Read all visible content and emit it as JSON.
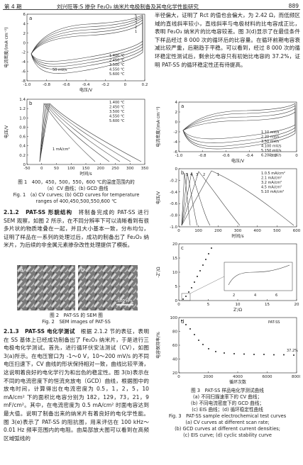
{
  "header": {
    "issue": "第 4 期",
    "running_title": "刘兴旺等:S 掺杂 Fe₂O₃ 纳米片电极制备及其电化学性能研究",
    "page": "889"
  },
  "figure1": {
    "a": {
      "label": "a",
      "ylabel": "电流密度/(mA·cm⁻²)",
      "xlabel": "电压/V",
      "yticks": [
        "6",
        "4",
        "2",
        "0",
        "-2",
        "-4",
        "-6",
        "-8"
      ],
      "xticks": [
        "-1.0",
        "-0.8",
        "-0.6",
        "-0.4",
        "-0.2",
        "0",
        "0.2"
      ],
      "legend": [
        "1.400 ℃",
        "2.450 ℃",
        "3.500 ℃",
        "4.550 ℃",
        "5.600 ℃"
      ],
      "notes": [
        "50 mV/s",
        "1",
        "2",
        "3",
        "4",
        "5"
      ]
    },
    "b": {
      "label": "b",
      "ylabel": "电压/V",
      "xlabel": "时间/s",
      "yticks": [
        "1.4",
        "1.2",
        "1.0",
        "0.8",
        "0.6",
        "0.4",
        "0.2",
        "0"
      ],
      "xticks": [
        "-50",
        "0",
        "50",
        "100",
        "150",
        "200",
        "250",
        "300",
        "350"
      ],
      "legend": [
        "1.400 ℃",
        "2.450 ℃",
        "3.500 ℃",
        "4.550 ℃",
        "5.600 ℃"
      ],
      "notes": [
        "1 mA/cm²"
      ]
    },
    "caption_cn": [
      "图 1　400，450，500，550，600 ℃的温度范围内的",
      "（a）CV 曲线；(b) GCD 曲线"
    ],
    "caption_en": [
      "Fig. 1　(a) CV curves; (b) GCD curves for temperature",
      "ranges of 400,450,500,550,600 ℃"
    ]
  },
  "section_2_1_2": {
    "heading": "2.1.2　PAT-SS 形貌结构",
    "text": "　将制备完成的 PAT-SS 进行 SEM 观察，如图 2 所示，在不同分辨率下可以清晰看到有很多片状的物质堆叠在一起，并且大小基本一致，分布均匀，证明了样品在一系列的处理过后，成功的制备出了 Fe₂O₃ 纳米片，为后续的非金属元素掺杂改性处理提供了模板。"
  },
  "figure2": {
    "panels": [
      "a",
      "b"
    ],
    "scale_bar": "500 nm",
    "caption_cn": "图 2　PAT-SS 的 SEM 图",
    "caption_en": "Fig. 2　SEM images of PAT-SS"
  },
  "section_2_1_3": {
    "heading": "2.1.3　PAT-SS 电化学测试",
    "text": "　根据 2.1.2 节的表征，表明在 SS 基体上已经成功制备出了 Fe₂O₃ 纳米片，于是进行三电极电化学测试。首先，进行循环伏安法测试（CV），如图 3(a)所示。在电压窗口为 -1～0 V，10～200 mV/s 的不同电压扫速下，CV 曲线的形状保持相对一致，曲线比较平滑，这说明着良好的电化学行为和出色的稳定性。图 3(b)表示在不同的电流密度下的恒流充放电（GCD）曲线，根据图中的放电时间，计算得出在电流密度为 0.5，1，2，5，10 mA/cm² 下的面积比电容分别为 182，129，73，21，9 mF/cm²。其中，在电流密度为 0.5 mA/cm² 时面电容达到最大值。说明了制备出来的纳米片有着良好的电化学性能。图 3(e)表示了 PAT-SS 的阻抗图，用来评估在 100 kHz～0.01 Hz 频率范围内的电阻。由局部放大图可以看到在高频区域弧线的"
  },
  "paragraph_right": "半径偏大，证明了 Rct 的值也会偏大，为 2.42 Ω，而低频区域的直线斜率较小，直线斜率与电极材料的比电容成正比，表明 Fe₂O₃ 纳米片的比电容较差。图 3(d)显示了在最佳条件下样品经过 8 000 次的循环后的比容量。在循环前期电容衰减比较严重，后期趋于平稳。可以看到，经过 8 000 次的循环稳定性测试后，剩余比电容只有初始比电容的 37.2%，证明 PAT-SS 的循环稳定性还有待提高。",
  "figure3": {
    "a": {
      "label": "a",
      "ylabel": "电流密度/(mA·cm⁻²)",
      "xlabel": "电压/V",
      "yticks": [
        "4",
        "2",
        "0",
        "-2",
        "-4",
        "-6"
      ],
      "xticks": [
        "-1.0",
        "-0.8",
        "-0.6",
        "-0.4",
        "-0.2",
        "0"
      ],
      "legend": [
        "1.10 mV/s",
        "2.20 mV/s",
        "3.50 mV/s",
        "4.100 mV/s",
        "5.150 mV/s",
        "6.200 mV/s"
      ],
      "notes": []
    },
    "b": {
      "label": "b",
      "ylabel": "电压/V",
      "xlabel": "时间/s",
      "yticks": [
        "0",
        "-0.2",
        "-0.4",
        "-0.6",
        "-0.8",
        "-1.0"
      ],
      "xticks": [
        "0",
        "100",
        "200",
        "300",
        "400",
        "500",
        "600"
      ],
      "legend": [
        "1.0.5 mA/cm²",
        "2.1 mA/cm²",
        "3.2 mA/cm²",
        "4.5 mA/cm²",
        "5.10 mA/cm²"
      ],
      "notes": [
        "5",
        "4",
        "3",
        "2",
        "1"
      ]
    },
    "c": {
      "label": "c",
      "ylabel": "-Z″/Ω",
      "xlabel": "Z′/Ω",
      "yticks": [
        "20",
        "15",
        "10",
        "5",
        "0"
      ],
      "xticks": [
        "0",
        "5",
        "10",
        "15",
        "20"
      ],
      "legend": [],
      "notes": [
        "2",
        "4",
        "6"
      ]
    },
    "d": {
      "label": "d",
      "ylabel": "电容保持率/%",
      "xlabel": "循环次数",
      "yticks": [
        "100",
        "80",
        "60",
        "40",
        "20"
      ],
      "xticks": [
        "0",
        "2000",
        "4000",
        "6000",
        "8000"
      ],
      "legend": [
        "PAT-SS"
      ],
      "notes": [
        "37.2%"
      ]
    },
    "caption_cn": [
      "图 3　PAT-SS 样品电化学测试曲线",
      "(a) 不同扫描速率下的 CV 曲线；",
      "(b) 不同电流密度下的 GCD 曲线；",
      "(c) EIS 曲线；(d) 循环稳定性曲线"
    ],
    "caption_en": [
      "Fig. 3　PAT-SS sample electrochemical test curves",
      "(a) CV curves at different scan rate;",
      "(b) GCD curves at different current densities;",
      "(c) EIS curve; (d) cyclic stability curve"
    ]
  }
}
